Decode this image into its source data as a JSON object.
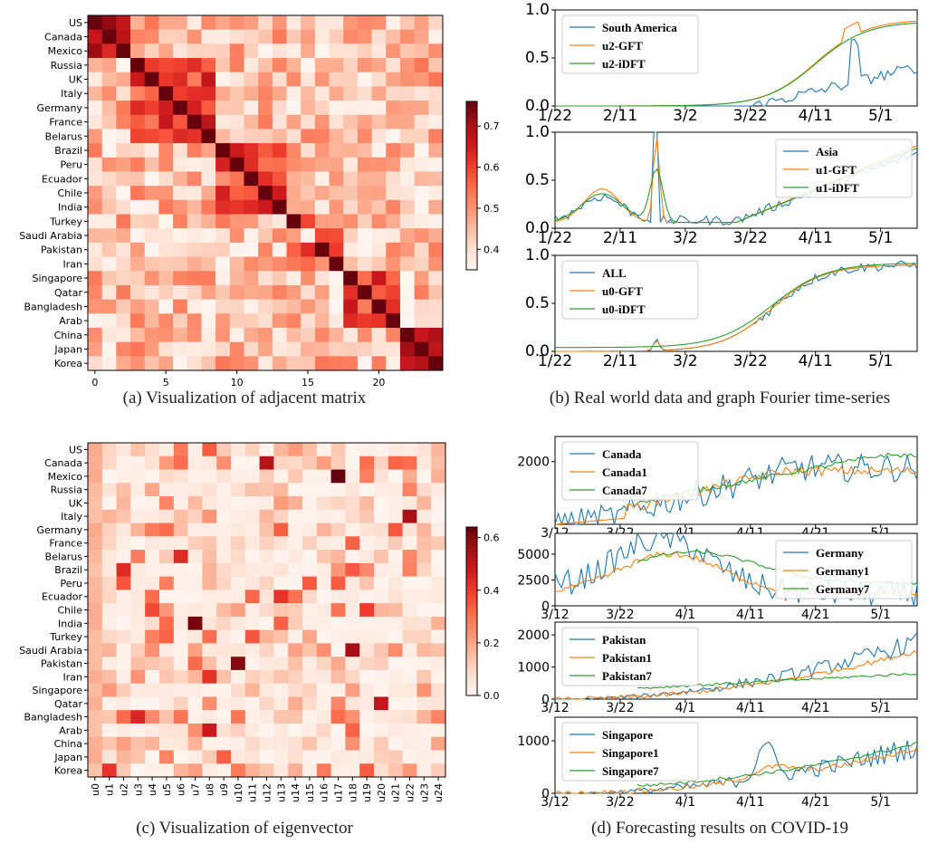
{
  "captions": {
    "a": "(a) Visualization of adjacent matrix",
    "b": "(b) Real world data and graph Fourier time-series",
    "c": "(c) Visualization of eigenvector",
    "d": "(d) Forecasting results on COVID-19"
  },
  "chart_data": [
    {
      "id": "a",
      "type": "heatmap",
      "title": "",
      "row_labels": [
        "US",
        "Canada",
        "Mexico",
        "Russia",
        "UK",
        "Italy",
        "Germany",
        "France",
        "Belarus ",
        "Brazil",
        "Peru",
        "Ecuador",
        "Chile",
        "India",
        "Turkey",
        "Saudi Arabia",
        "Pakistan",
        "Iran",
        "Singapore",
        "Qatar",
        "Bangladesh",
        "Arab",
        "China",
        "Japan",
        "Korea"
      ],
      "x_ticks": [
        "0",
        "5",
        "10",
        "15",
        "20"
      ],
      "x_tick_positions": [
        0,
        5,
        10,
        15,
        20
      ],
      "colorbar_ticks": [
        "0.4",
        "0.5",
        "0.6",
        "0.7"
      ],
      "colorbar_range": [
        0.35,
        0.76
      ],
      "colormap": "Reds",
      "clusters": [
        [
          0,
          2,
          0.72
        ],
        [
          3,
          8,
          0.62
        ],
        [
          9,
          13,
          0.6
        ],
        [
          14,
          17,
          0.58
        ],
        [
          18,
          21,
          0.63
        ],
        [
          22,
          24,
          0.66
        ]
      ]
    },
    {
      "id": "b",
      "type": "line",
      "subplots": [
        {
          "legend": [
            "South America",
            "u2-GFT",
            "u2-iDFT"
          ],
          "x_ticks": [
            "1/22",
            "2/11",
            "3/2",
            "3/22",
            "4/11",
            "5/1"
          ],
          "y_ticks": [
            "0.0",
            "0.5",
            "1.0"
          ],
          "ylim": [
            0,
            1
          ]
        },
        {
          "legend": [
            "Asia",
            "u1-GFT",
            "u1-iDFT"
          ],
          "x_ticks": [
            "1/22",
            "2/11",
            "3/2",
            "3/22",
            "4/11",
            "5/1"
          ],
          "y_ticks": [
            "0.0",
            "0.5",
            "1.0"
          ],
          "ylim": [
            0,
            1
          ]
        },
        {
          "legend": [
            "ALL",
            "u0-GFT",
            "u0-iDFT"
          ],
          "x_ticks": [
            "1/22",
            "2/11",
            "3/2",
            "3/22",
            "4/11",
            "5/1"
          ],
          "y_ticks": [
            "0.0",
            "0.5",
            "1.0"
          ],
          "ylim": [
            0,
            1
          ]
        }
      ],
      "colors": [
        "#1f77b4",
        "#ff7f0e",
        "#2ca02c"
      ]
    },
    {
      "id": "c",
      "type": "heatmap",
      "title": "",
      "row_labels": [
        "US",
        "Canada",
        "Mexico",
        "Russia",
        "UK",
        "Italy",
        "Germany",
        "France",
        "Belarus ",
        "Brazil",
        "Peru",
        "Ecuador",
        "Chile",
        "India",
        "Turkey",
        "Saudi Arabia",
        "Pakistan",
        "Iran",
        "Singapore",
        "Qatar",
        "Bangladesh",
        "Arab",
        "China",
        "Japan",
        "Korea"
      ],
      "col_labels": [
        "u0",
        "u1",
        "u2",
        "u3",
        "u4",
        "u5",
        "u6",
        "u7",
        "u8",
        "u9",
        "u10",
        "u11",
        "u12",
        "u13",
        "u14",
        "u15",
        "u16",
        "u17",
        "u18",
        "u19",
        "u20",
        "u21",
        "u22",
        "u23",
        "u24"
      ],
      "colorbar_ticks": [
        "0.0",
        "0.2",
        "0.4",
        "0.6"
      ],
      "colorbar_range": [
        0,
        0.64
      ],
      "colormap": "Reds"
    },
    {
      "id": "d",
      "type": "line",
      "subplots": [
        {
          "legend": [
            "Canada",
            "Canada1",
            "Canada7"
          ],
          "x_ticks": [
            "3/12",
            "3/22",
            "4/1",
            "4/11",
            "4/21",
            "5/1"
          ],
          "y_ticks": [
            "2000"
          ],
          "ylim": [
            0,
            2800
          ]
        },
        {
          "legend": [
            "Germany",
            "Germany1",
            "Germany7"
          ],
          "x_ticks": [
            "3/12",
            "3/22",
            "4/1",
            "4/11",
            "4/21",
            "5/1"
          ],
          "y_ticks": [
            "0",
            "2500",
            "5000"
          ],
          "ylim": [
            0,
            7000
          ]
        },
        {
          "legend": [
            "Pakistan",
            "Pakistan1",
            "Pakistan7"
          ],
          "x_ticks": [
            "3/12",
            "3/22",
            "4/1",
            "4/11",
            "4/21",
            "5/1"
          ],
          "y_ticks": [
            "0",
            "1000",
            "2000"
          ],
          "ylim": [
            0,
            2400
          ]
        },
        {
          "legend": [
            "Singapore",
            "Singapore1",
            "Singapore7"
          ],
          "x_ticks": [
            "3/12",
            "3/22",
            "4/1",
            "4/11",
            "4/21",
            "5/1"
          ],
          "y_ticks": [
            "0",
            "1000"
          ],
          "ylim": [
            0,
            1450
          ]
        }
      ],
      "colors": [
        "#1f77b4",
        "#ff7f0e",
        "#2ca02c"
      ]
    }
  ]
}
